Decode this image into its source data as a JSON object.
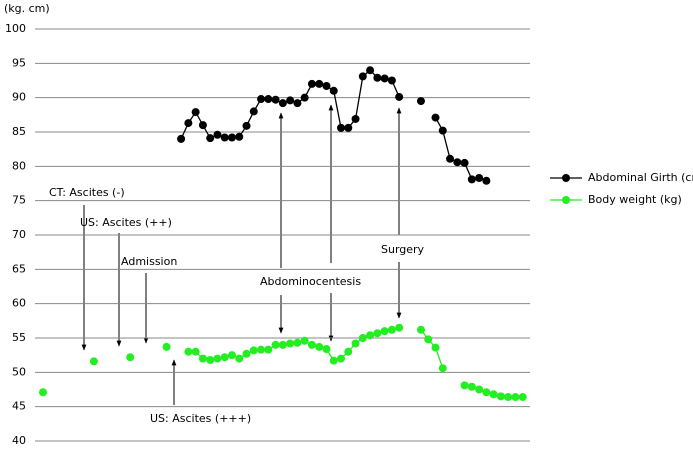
{
  "chart_data": {
    "type": "line",
    "y_label": "(kg. cm)",
    "ylim": [
      40,
      100
    ],
    "yticks": [
      40,
      45,
      50,
      55,
      60,
      65,
      70,
      75,
      80,
      85,
      90,
      95,
      100
    ],
    "xlim": [
      -1.1,
      67
    ],
    "grid": true,
    "legend": "right",
    "series": [
      {
        "name": "Abdominal Girth (cm)",
        "color": "#000000",
        "x": [
          19,
          20,
          21,
          22,
          23,
          24,
          25,
          26,
          27,
          28,
          29,
          30,
          31,
          32,
          33,
          34,
          35,
          36,
          37,
          38,
          39,
          40,
          41,
          42,
          43,
          44,
          45,
          46,
          47,
          48,
          49,
          50.5,
          52,
          53,
          54,
          55,
          56,
          57,
          58,
          59,
          60,
          61
        ],
        "values": [
          84,
          86.3,
          87.9,
          86,
          84.1,
          84.6,
          84.2,
          84.2,
          84.3,
          85.9,
          88,
          89.8,
          89.8,
          89.7,
          89.2,
          89.6,
          89.2,
          90,
          92,
          92,
          91.7,
          91,
          85.6,
          85.6,
          86.9,
          93.1,
          94,
          92.9,
          92.8,
          92.5,
          90.1,
          null,
          89.5,
          null,
          87.1,
          85.2,
          81.1,
          80.6,
          80.5,
          78.1,
          78.3,
          77.9
        ]
      },
      {
        "name": "Body weight (kg)",
        "color": "#22ee22",
        "x": [
          0,
          3,
          7,
          10,
          12,
          15,
          17,
          18,
          20,
          21,
          22,
          23,
          24,
          25,
          26,
          27,
          28,
          29,
          30,
          31,
          32,
          33,
          34,
          35,
          36,
          37,
          38,
          39,
          40,
          41,
          42,
          43,
          44,
          45,
          46,
          47,
          48,
          49,
          50.5,
          52,
          53,
          54,
          55,
          56.5,
          58,
          59,
          60,
          61,
          62,
          63,
          64,
          65,
          66
        ],
        "values": [
          47.1,
          null,
          51.6,
          null,
          52.2,
          null,
          53.7,
          null,
          53,
          53,
          52,
          51.8,
          52,
          52.2,
          52.5,
          52,
          52.7,
          53.2,
          53.3,
          53.3,
          54,
          54,
          54.2,
          54.3,
          54.6,
          54,
          53.7,
          53.4,
          51.7,
          52,
          53,
          54.2,
          55,
          55.4,
          55.7,
          56,
          56.2,
          56.5,
          null,
          56.2,
          54.8,
          53.6,
          50.6,
          null,
          48.1,
          47.9,
          47.5,
          47.1,
          46.8,
          46.5,
          46.4,
          46.4,
          46.4
        ]
      }
    ],
    "annotations": [
      "CT: Ascites (-)",
      "US: Ascites (++)",
      "Admission",
      "US: Ascites (+++)",
      "Abdominocentesis",
      "Surgery"
    ]
  }
}
